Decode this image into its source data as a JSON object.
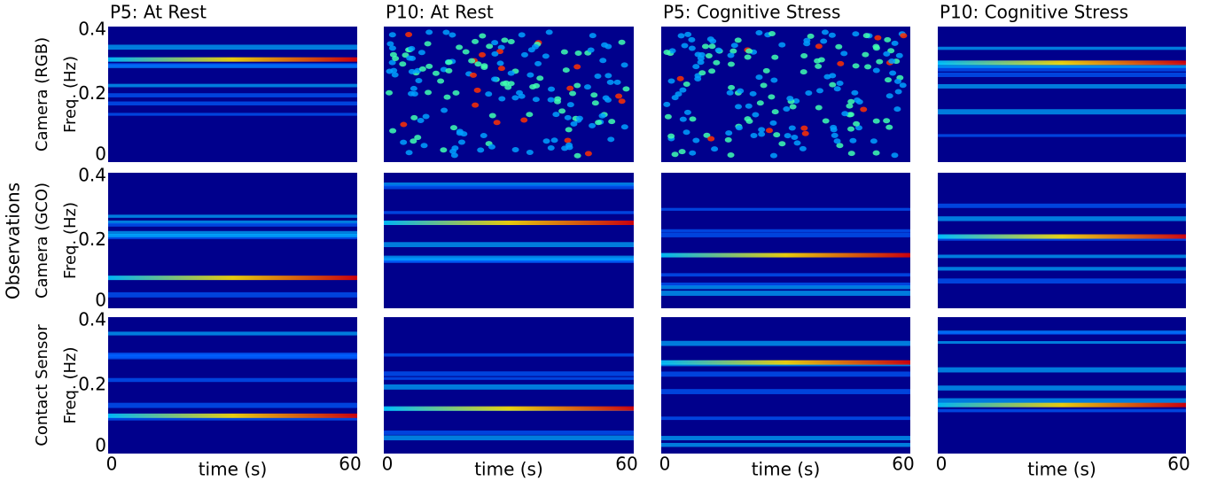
{
  "columns": [
    "P5: At Rest",
    "P10: At Rest",
    "P5: Cognitive Stress",
    "P10: Cognitive Stress"
  ],
  "group_label": "Observations",
  "rows": [
    {
      "label": "Camera (RGB)",
      "axis": "Freq. (Hz)"
    },
    {
      "label": "Camera (GCO)",
      "axis": "Freq. (Hz)"
    },
    {
      "label": "Contact Sensor",
      "axis": "Freq. (Hz)"
    }
  ],
  "yticks": [
    "0.4",
    "0.2",
    "0"
  ],
  "xaxis": {
    "label": "time (s)",
    "ticks": [
      "0",
      "60"
    ]
  }
}
